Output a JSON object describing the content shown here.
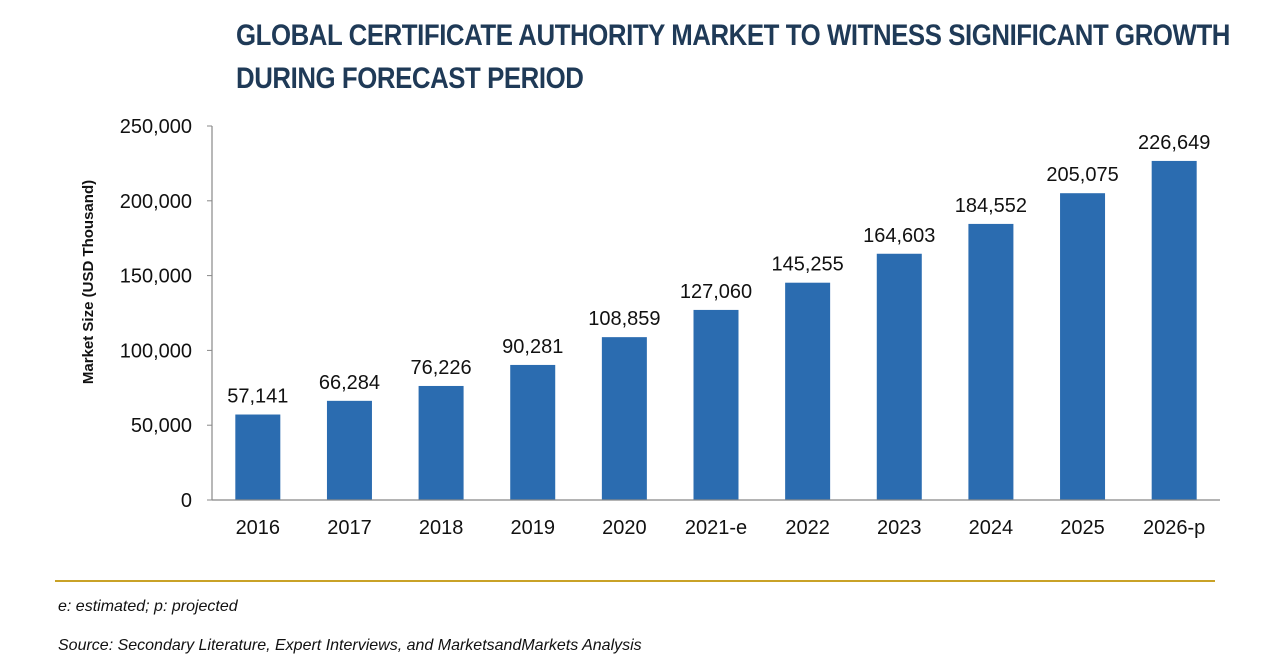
{
  "title_lines": [
    "GLOBAL CERTIFICATE AUTHORITY MARKET TO WITNESS SIGNIFICANT GROWTH",
    "DURING FORECAST PERIOD"
  ],
  "colors": {
    "bar": "#2b6cb0",
    "title": "#1f3a57",
    "rule": "#c9a227"
  },
  "chart_data": {
    "type": "bar",
    "title": "GLOBAL CERTIFICATE AUTHORITY MARKET TO WITNESS SIGNIFICANT GROWTH DURING FORECAST PERIOD",
    "xlabel": "",
    "ylabel": "Market Size (USD Thousand)",
    "ylim": [
      0,
      250000
    ],
    "yticks": [
      "0",
      "50,000",
      "100,000",
      "150,000",
      "200,000",
      "250,000"
    ],
    "ytick_values": [
      0,
      50000,
      100000,
      150000,
      200000,
      250000
    ],
    "categories": [
      "2016",
      "2017",
      "2018",
      "2019",
      "2020",
      "2021-e",
      "2022",
      "2023",
      "2024",
      "2025",
      "2026-p"
    ],
    "values": [
      57141,
      66284,
      76226,
      90281,
      108859,
      127060,
      145255,
      164603,
      184552,
      205075,
      226649
    ],
    "value_labels": [
      "57,141",
      "66,284",
      "76,226",
      "90,281",
      "108,859",
      "127,060",
      "145,255",
      "164,603",
      "184,552",
      "205,075",
      "226,649"
    ],
    "grid": false
  },
  "footnotes": {
    "legend_note": "e: estimated; p: projected",
    "source": "Source: Secondary Literature, Expert Interviews, and MarketsandMarkets Analysis"
  }
}
